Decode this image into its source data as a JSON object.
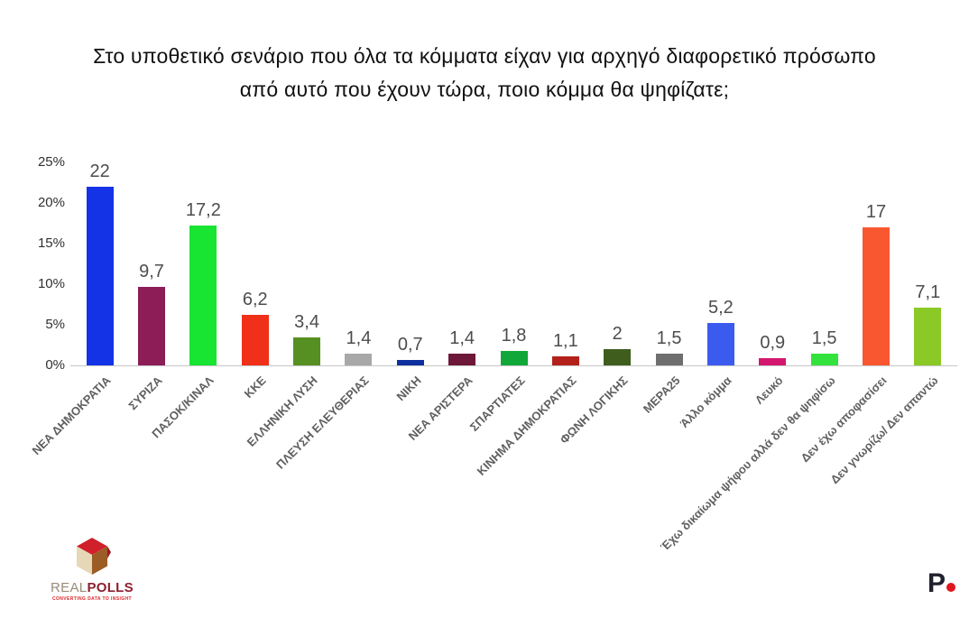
{
  "title": {
    "line1": "Στο υποθετικό σενάριο που όλα τα κόμματα είχαν για αρχηγό διαφορετικό πρόσωπο",
    "line2": "από αυτό που έχουν τώρα, ποιο κόμμα θα ψηφίζατε;"
  },
  "chart_data": {
    "type": "bar",
    "title": "Στο υποθετικό σενάριο που όλα τα κόμματα είχαν για αρχηγό διαφορετικό πρόσωπο από αυτό που έχουν τώρα, ποιο κόμμα θα ψηφίζατε;",
    "categories": [
      "ΝΕΑ ΔΗΜΟΚΡΑΤΙΑ",
      "ΣΥΡΙΖΑ",
      "ΠΑΣΟΚ/ΚΙΝΑΛ",
      "ΚΚΕ",
      "ΕΛΛΗΝΙΚΗ ΛΥΣΗ",
      "ΠΛΕΥΣΗ ΕΛΕΥΘΕΡΙΑΣ",
      "ΝΙΚΗ",
      "ΝΕΑ ΑΡΙΣΤΕΡΑ",
      "ΣΠΑΡΤΙΑΤΕΣ",
      "ΚΙΝΗΜΑ ΔΗΜΟΚΡΑΤΙΑΣ",
      "ΦΩΝΗ ΛΟΓΙΚΗΣ",
      "ΜΕΡΑ25",
      "Άλλο κόμμα",
      "Λευκό",
      "Έχω δικαίωμα ψήφου αλλά δεν θα ψηφίσω",
      "Δεν έχω αποφασίσει",
      "Δεν γνωρίζω/ Δεν απαντώ"
    ],
    "values": [
      22,
      9.7,
      17.2,
      6.2,
      3.4,
      1.4,
      0.7,
      1.4,
      1.8,
      1.1,
      2,
      1.5,
      5.2,
      0.9,
      1.5,
      17,
      7.1
    ],
    "value_labels": [
      "22",
      "9,7",
      "17,2",
      "6,2",
      "3,4",
      "1,4",
      "0,7",
      "1,4",
      "1,8",
      "1,1",
      "2",
      "1,5",
      "5,2",
      "0,9",
      "1,5",
      "17",
      "7,1"
    ],
    "bar_colors": [
      "#1433e6",
      "#8c1d56",
      "#18e432",
      "#f03018",
      "#579022",
      "#a8a8a8",
      "#0e2f9e",
      "#6d1838",
      "#12a839",
      "#b3211a",
      "#3f5e1d",
      "#6e6e6e",
      "#3b5bef",
      "#d4176e",
      "#33e23c",
      "#f95730",
      "#8bc926"
    ],
    "xlabel": "",
    "ylabel": "",
    "ylim": [
      0,
      25
    ],
    "yticks": [
      0,
      5,
      10,
      15,
      20,
      25
    ],
    "ytick_labels": [
      "0%",
      "5%",
      "10%",
      "15%",
      "20%",
      "25%"
    ],
    "grid": "off",
    "legend": "none"
  },
  "footer": {
    "realpolls": {
      "real": "REAL",
      "polls": "POLLS",
      "tagline": "CONVERTING DATA TO INSIGHT",
      "cube_colors": {
        "top": "#d0202b",
        "top_shade": "#9e1722",
        "left": "#e6d8b6",
        "right": "#9c5c26"
      }
    },
    "publisher": {
      "letter": "P",
      "dot_color": "#e0161c"
    }
  }
}
